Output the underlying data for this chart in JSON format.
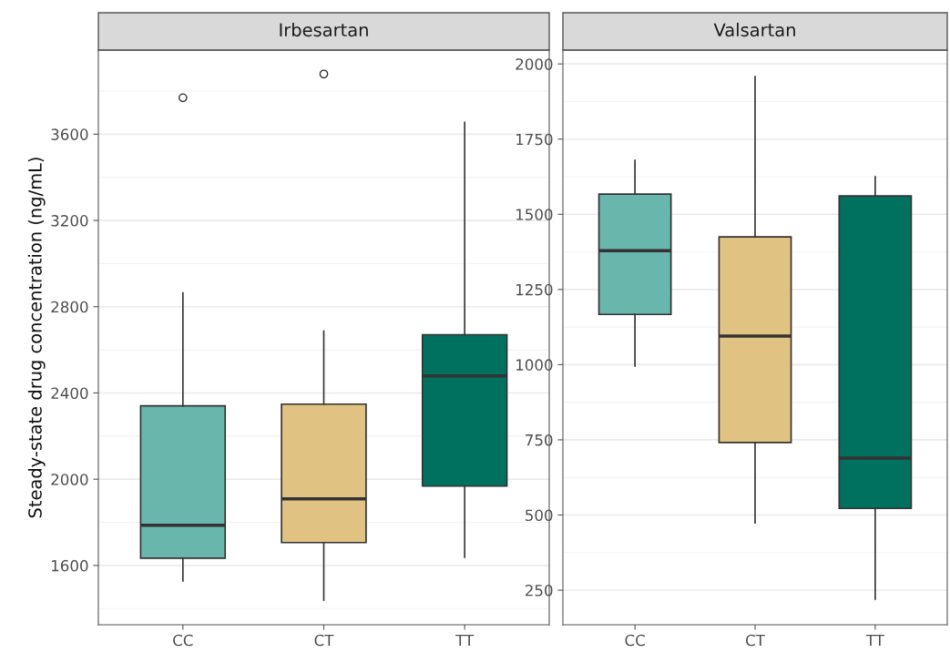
{
  "chart_data": [
    {
      "type": "box",
      "title": "Irbesartan",
      "ylabel": "Steady-state drug concentration (ng/mL)",
      "categories": [
        "CC",
        "CT",
        "TT"
      ],
      "colors": [
        "#69b6ac",
        "#e0c383",
        "#00705f"
      ],
      "boxes": [
        {
          "low": 1528,
          "q1": 1634,
          "median": 1786,
          "q3": 2340,
          "high": 2864,
          "outliers": [
            3769
          ]
        },
        {
          "low": 1439,
          "q1": 1706,
          "median": 1909,
          "q3": 2348,
          "high": 2687,
          "outliers": [
            3879
          ]
        },
        {
          "low": 1638,
          "q1": 1968,
          "median": 2479,
          "q3": 2670,
          "high": 3655
        }
      ],
      "ylim": [
        1325,
        3990
      ],
      "yticks": [
        1600,
        2000,
        2400,
        2800,
        3200,
        3600
      ],
      "grid": "y"
    },
    {
      "type": "box",
      "title": "Valsartan",
      "categories": [
        "CC",
        "CT",
        "TT"
      ],
      "colors": [
        "#69b6ac",
        "#e0c383",
        "#00705f"
      ],
      "boxes": [
        {
          "low": 995,
          "q1": 1167,
          "median": 1379,
          "q3": 1567,
          "high": 1679
        },
        {
          "low": 474,
          "q1": 741,
          "median": 1095,
          "q3": 1425,
          "high": 1958
        },
        {
          "low": 220,
          "q1": 522,
          "median": 689,
          "q3": 1561,
          "high": 1625
        }
      ],
      "ylim": [
        135,
        2046
      ],
      "yticks": [
        250,
        500,
        750,
        1000,
        1250,
        1500,
        1750,
        2000
      ],
      "grid": "y"
    }
  ]
}
